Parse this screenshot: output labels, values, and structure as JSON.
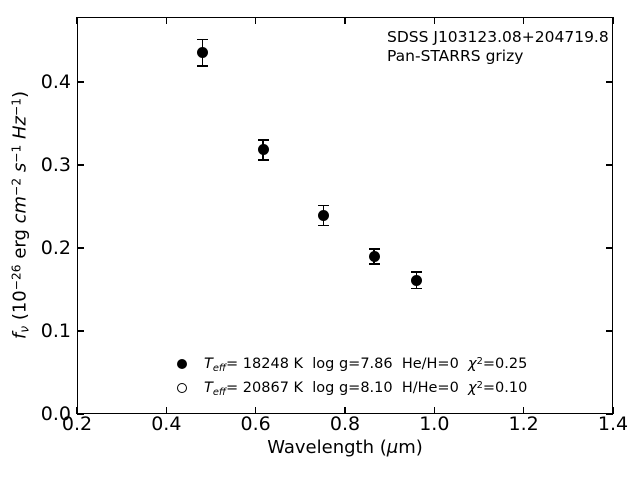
{
  "chart_data": {
    "type": "scatter",
    "title": "",
    "xlabel": "Wavelength (μm)",
    "ylabel": "fν (10−26 erg cm−2 s−1 Hz−1)",
    "xlim": [
      0.2,
      1.4
    ],
    "ylim": [
      0.0,
      0.478
    ],
    "xticks": [
      0.2,
      0.4,
      0.6,
      0.8,
      1.0,
      1.2,
      1.4
    ],
    "yticks": [
      0.0,
      0.1,
      0.2,
      0.3,
      0.4
    ],
    "grid": false,
    "tick_direction": "in",
    "legend_position": "lower-center",
    "series": [
      {
        "name": "Teff= 18248 K  log g=7.86  He/H=0  chi2=0.25",
        "marker": "filled-circle",
        "x": [
          0.481,
          0.617,
          0.752,
          0.865,
          0.96
        ],
        "y": [
          0.435,
          0.318,
          0.239,
          0.19,
          0.161
        ],
        "yerr": [
          0.016,
          0.012,
          0.012,
          0.009,
          0.01
        ]
      },
      {
        "name": "Teff= 20867 K  log g=8.10  H/He=0  chi2=0.10",
        "marker": "open-circle",
        "x": [],
        "y": [],
        "yerr": [],
        "note": "model points coincide with filled markers and are hidden"
      }
    ],
    "annotations": [
      "SDSS J103123.08+204719.8",
      "Pan-STARRS grizy"
    ]
  },
  "annotation": {
    "line1": "SDSS J103123.08+204719.8",
    "line2": "Pan-STARRS grizy"
  },
  "legend": {
    "rows": [
      {
        "marker": "filled-circle",
        "t": "T",
        "t_sub": "eff",
        "mid": "= 18248 K  log g=7.86  He/H=0  ",
        "chi": "χ",
        "chi_sup": "2",
        "tail": "=0.25"
      },
      {
        "marker": "open-circle",
        "t": "T",
        "t_sub": "eff",
        "mid": "= 20867 K  log g=8.10  H/He=0  ",
        "chi": "χ",
        "chi_sup": "2",
        "tail": "=0.10"
      }
    ]
  },
  "xlabel": {
    "pre": "Wavelength (",
    "mu": "μ",
    "post": "m)"
  },
  "ylabel": {
    "f": "f",
    "nu": "ν",
    "p1": " (10",
    "exp26": "−26",
    "p2": " erg ",
    "cm": "cm",
    "exp_cm": "−2",
    "sp1": " ",
    "s": "s",
    "exp_s": "−1",
    "sp2": " ",
    "hz": "Hz",
    "exp_hz": "−1",
    "close": ")"
  },
  "colors": {
    "foreground": "#000000",
    "background": "#ffffff"
  }
}
